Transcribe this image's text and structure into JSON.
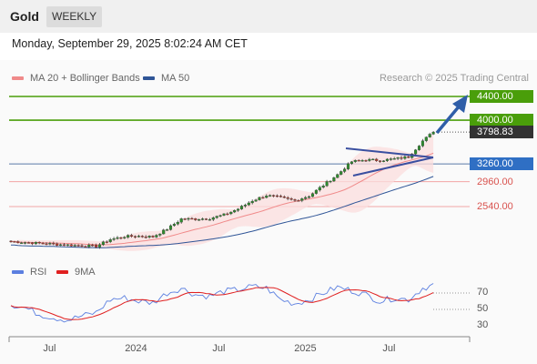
{
  "header": {
    "title": "Gold",
    "timeframe": "WEEKLY"
  },
  "date": "Monday, September 29, 2025 8:02:24 AM CET",
  "legend": {
    "main": [
      {
        "label": "MA 20 + Bollinger Bands",
        "color": "#f08a8a"
      },
      {
        "label": "MA 50",
        "color": "#2f5597"
      }
    ],
    "rsi": [
      {
        "label": "RSI",
        "color": "#5b7fe0"
      },
      {
        "label": "9MA",
        "color": "#e02020"
      }
    ]
  },
  "credit": "Research © 2025 Trading Central",
  "colors": {
    "green": "#4a9e0a",
    "blue": "#2f6fc4",
    "red": "#f08a8a",
    "price": "#333333"
  },
  "chart_data": {
    "type": "candlestick",
    "x_labels": [
      "Jul",
      "2024",
      "Jul",
      "2025",
      "Jul"
    ],
    "levels": [
      {
        "value": 4400.0,
        "label": "4400.00",
        "kind": "resistance"
      },
      {
        "value": 4000.0,
        "label": "4000.00",
        "kind": "resistance"
      },
      {
        "value": 3798.83,
        "label": "3798.83",
        "kind": "last-price"
      },
      {
        "value": 3260.0,
        "label": "3260.00",
        "kind": "pivot"
      },
      {
        "value": 2960.0,
        "label": "2960.00",
        "kind": "support"
      },
      {
        "value": 2540.0,
        "label": "2540.00",
        "kind": "support"
      }
    ],
    "price_path": [
      [
        0,
        1950
      ],
      [
        4,
        1935
      ],
      [
        8,
        1920
      ],
      [
        12,
        1905
      ],
      [
        16,
        1890
      ],
      [
        20,
        1880
      ],
      [
        24,
        1870
      ],
      [
        28,
        1985
      ],
      [
        32,
        2035
      ],
      [
        36,
        2040
      ],
      [
        40,
        2030
      ],
      [
        44,
        2160
      ],
      [
        48,
        2330
      ],
      [
        52,
        2330
      ],
      [
        56,
        2340
      ],
      [
        60,
        2400
      ],
      [
        64,
        2500
      ],
      [
        68,
        2640
      ],
      [
        72,
        2730
      ],
      [
        76,
        2690
      ],
      [
        80,
        2640
      ],
      [
        84,
        2720
      ],
      [
        88,
        2900
      ],
      [
        92,
        3080
      ],
      [
        96,
        3300
      ],
      [
        100,
        3330
      ],
      [
        104,
        3320
      ],
      [
        108,
        3345
      ],
      [
        112,
        3380
      ],
      [
        116,
        3650
      ],
      [
        119,
        3798.83
      ]
    ],
    "rsi": {
      "ticks": [
        70,
        50,
        30
      ],
      "values": [
        [
          0,
          56
        ],
        [
          4,
          52
        ],
        [
          8,
          44
        ],
        [
          12,
          40
        ],
        [
          16,
          37
        ],
        [
          20,
          42
        ],
        [
          24,
          46
        ],
        [
          28,
          62
        ],
        [
          32,
          64
        ],
        [
          36,
          60
        ],
        [
          40,
          58
        ],
        [
          44,
          70
        ],
        [
          48,
          76
        ],
        [
          52,
          68
        ],
        [
          56,
          66
        ],
        [
          60,
          72
        ],
        [
          64,
          74
        ],
        [
          68,
          78
        ],
        [
          72,
          76
        ],
        [
          76,
          62
        ],
        [
          80,
          57
        ],
        [
          84,
          62
        ],
        [
          88,
          70
        ],
        [
          92,
          77
        ],
        [
          96,
          73
        ],
        [
          100,
          68
        ],
        [
          104,
          60
        ],
        [
          108,
          64
        ],
        [
          112,
          62
        ],
        [
          116,
          76
        ],
        [
          119,
          80
        ]
      ]
    }
  }
}
